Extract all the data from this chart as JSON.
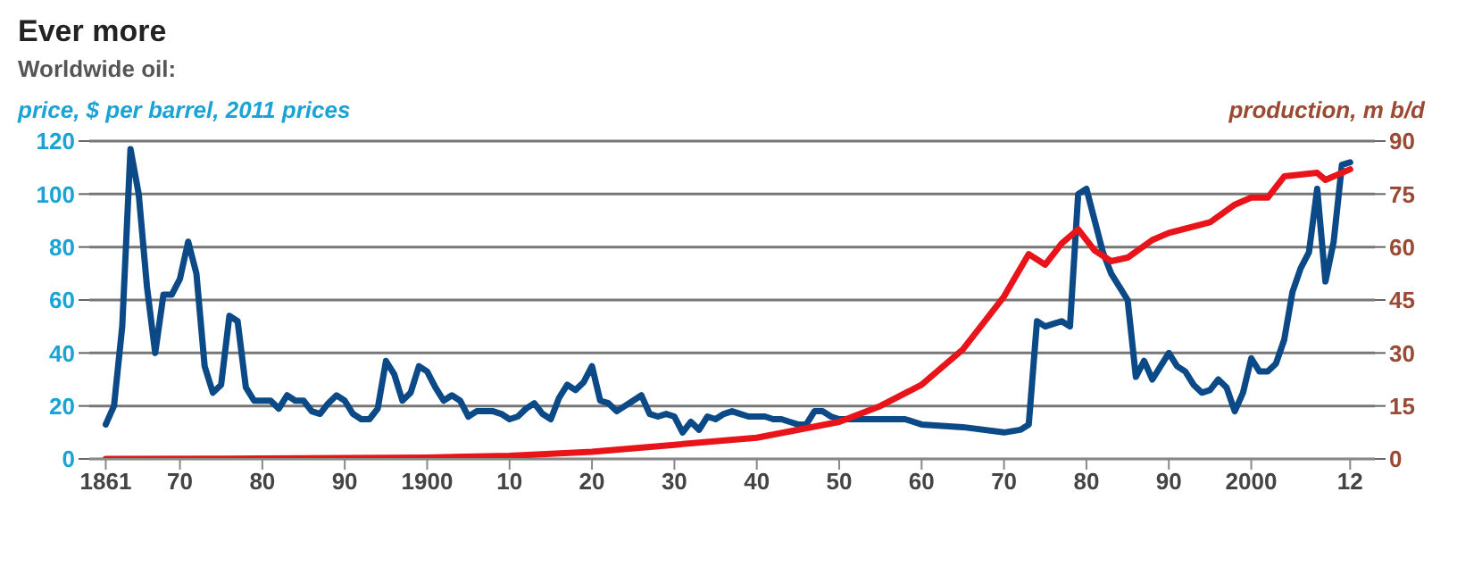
{
  "chart_data": {
    "type": "line",
    "title": "Ever more",
    "subtitle": "Worldwide oil:",
    "ylabel": "price, $ per barrel, 2011 prices",
    "y2label": "production, m b/d",
    "xlim": [
      1859,
      2015
    ],
    "xticks": [
      {
        "value": 1861,
        "label": "1861"
      },
      {
        "value": 1870,
        "label": "70"
      },
      {
        "value": 1880,
        "label": "80"
      },
      {
        "value": 1890,
        "label": "90"
      },
      {
        "value": 1900,
        "label": "1900"
      },
      {
        "value": 1910,
        "label": "10"
      },
      {
        "value": 1920,
        "label": "20"
      },
      {
        "value": 1930,
        "label": "30"
      },
      {
        "value": 1940,
        "label": "40"
      },
      {
        "value": 1950,
        "label": "50"
      },
      {
        "value": 1960,
        "label": "60"
      },
      {
        "value": 1970,
        "label": "70"
      },
      {
        "value": 1980,
        "label": "80"
      },
      {
        "value": 1990,
        "label": "90"
      },
      {
        "value": 2000,
        "label": "2000"
      },
      {
        "value": 2012,
        "label": "12"
      }
    ],
    "ylim": [
      0,
      120
    ],
    "yticks": [
      0,
      20,
      40,
      60,
      80,
      100,
      120
    ],
    "y2lim": [
      0,
      90
    ],
    "y2ticks": [
      0,
      15,
      30,
      45,
      60,
      75,
      90
    ],
    "grid": "y",
    "marker": "none",
    "line_style": "solid",
    "series": [
      {
        "color": "#0b4a86",
        "x": [
          1861,
          1862,
          1863,
          1864,
          1865,
          1866,
          1867,
          1868,
          1869,
          1870,
          1871,
          1872,
          1873,
          1874,
          1875,
          1876,
          1877,
          1878,
          1879,
          1880,
          1881,
          1882,
          1883,
          1884,
          1885,
          1886,
          1887,
          1888,
          1889,
          1890,
          1891,
          1892,
          1893,
          1894,
          1895,
          1896,
          1897,
          1898,
          1899,
          1900,
          1901,
          1902,
          1903,
          1904,
          1905,
          1906,
          1907,
          1908,
          1909,
          1910,
          1911,
          1912,
          1913,
          1914,
          1915,
          1916,
          1917,
          1918,
          1919,
          1920,
          1921,
          1922,
          1923,
          1924,
          1925,
          1926,
          1927,
          1928,
          1929,
          1930,
          1931,
          1932,
          1933,
          1934,
          1935,
          1936,
          1937,
          1938,
          1939,
          1940,
          1941,
          1942,
          1943,
          1944,
          1945,
          1946,
          1947,
          1948,
          1949,
          1950,
          1955,
          1958,
          1960,
          1965,
          1970,
          1972,
          1973,
          1974,
          1975,
          1976,
          1977,
          1978,
          1979,
          1980,
          1981,
          1982,
          1983,
          1984,
          1985,
          1986,
          1987,
          1988,
          1989,
          1990,
          1991,
          1992,
          1993,
          1994,
          1995,
          1996,
          1997,
          1998,
          1999,
          2000,
          2001,
          2002,
          2003,
          2004,
          2005,
          2006,
          2007,
          2008,
          2009,
          2010,
          2011,
          2012
        ],
        "values": [
          13,
          20,
          50,
          117,
          100,
          65,
          40,
          62,
          62,
          68,
          82,
          70,
          35,
          25,
          28,
          54,
          52,
          27,
          22,
          22,
          22,
          19,
          24,
          22,
          22,
          18,
          17,
          21,
          24,
          22,
          17,
          15,
          15,
          19,
          37,
          32,
          22,
          25,
          35,
          33,
          27,
          22,
          24,
          22,
          16,
          18,
          18,
          18,
          17,
          15,
          16,
          19,
          21,
          17,
          15,
          23,
          28,
          26,
          29,
          35,
          22,
          21,
          18,
          20,
          22,
          24,
          17,
          16,
          17,
          16,
          10,
          14,
          11,
          16,
          15,
          17,
          18,
          17,
          16,
          16,
          16,
          15,
          15,
          14,
          13,
          13,
          18,
          18,
          16,
          15,
          15,
          15,
          13,
          12,
          10,
          11,
          13,
          52,
          50,
          51,
          52,
          50,
          100,
          102,
          90,
          78,
          70,
          65,
          60,
          31,
          37,
          30,
          35,
          40,
          35,
          33,
          28,
          25,
          26,
          30,
          27,
          18,
          25,
          38,
          33,
          33,
          36,
          45,
          63,
          72,
          78,
          102,
          67,
          82,
          111,
          112
        ]
      },
      {
        "color": "#e8141a",
        "axis": "y2",
        "x": [
          1861,
          1880,
          1900,
          1910,
          1920,
          1930,
          1940,
          1950,
          1955,
          1960,
          1965,
          1970,
          1973,
          1975,
          1977,
          1979,
          1981,
          1983,
          1985,
          1988,
          1990,
          1995,
          1998,
          2000,
          2002,
          2004,
          2008,
          2009,
          2012
        ],
        "values": [
          0,
          0.1,
          0.4,
          0.9,
          2,
          4,
          6,
          10.5,
          15,
          21,
          31,
          46,
          58,
          55,
          61,
          65,
          59,
          56,
          57,
          62,
          64,
          67,
          72,
          74,
          74,
          80,
          81,
          79,
          82
        ]
      }
    ]
  }
}
